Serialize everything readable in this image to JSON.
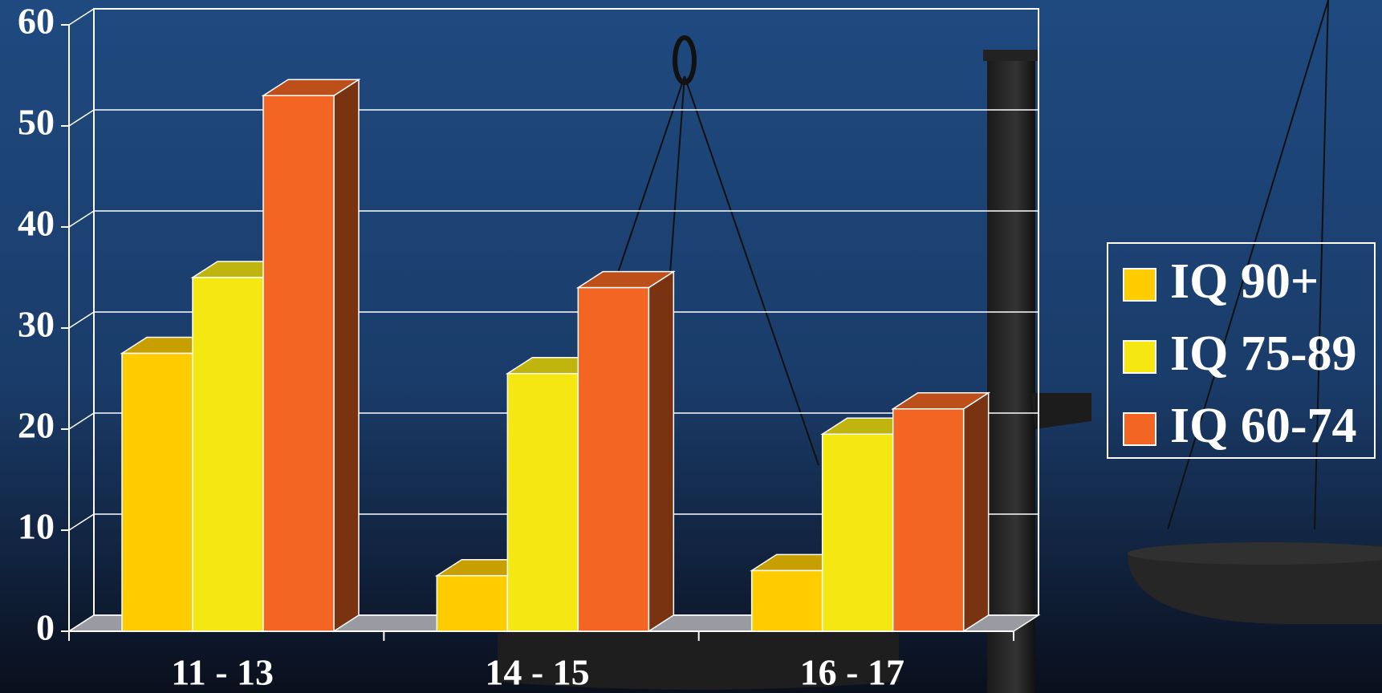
{
  "chart_data": {
    "type": "bar3d",
    "categories": [
      "11 - 13",
      "14 - 15",
      "16 - 17"
    ],
    "series": [
      {
        "name": "IQ 90+",
        "color": "#ffcc00",
        "values": [
          27.5,
          5.5,
          6
        ]
      },
      {
        "name": "IQ 75-89",
        "color": "#f5e812",
        "values": [
          35,
          25.5,
          19.5
        ]
      },
      {
        "name": "IQ 60-74",
        "color": "#f26522",
        "values": [
          53,
          34,
          22
        ]
      }
    ],
    "ylim": [
      0,
      60
    ],
    "yticks": [
      0,
      10,
      20,
      30,
      40,
      50,
      60
    ],
    "grid": true,
    "legend": "right"
  }
}
